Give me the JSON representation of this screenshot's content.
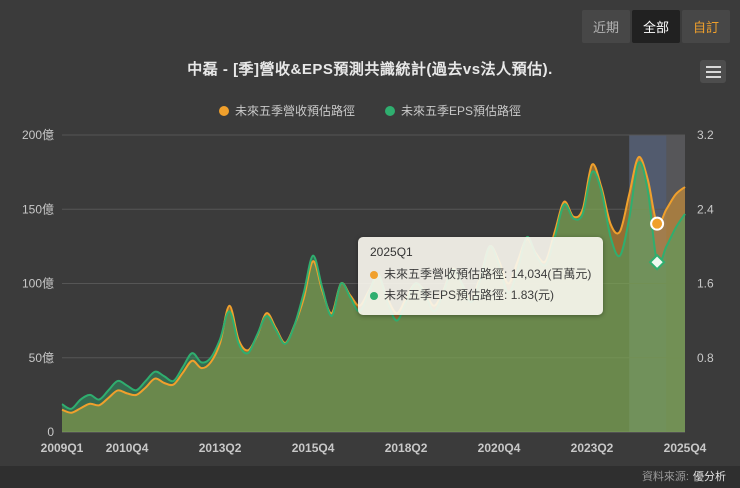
{
  "colors": {
    "background": "#3b3b3b",
    "revenue": "#f0a02c",
    "eps": "#2fae6f",
    "revenue_fill": "rgba(240,160,44,0.50)",
    "eps_fill": "rgba(47,174,111,0.42)",
    "grid": "#565656",
    "axis_line": "#6a6a6a",
    "tick_text": "#c8c8c8",
    "band": "rgba(108,128,168,0.48)",
    "future_band": "rgba(125,125,132,0.42)"
  },
  "toolbar": {
    "buttons": [
      {
        "label": "近期"
      },
      {
        "label": "全部"
      },
      {
        "label": "自訂"
      }
    ]
  },
  "header": {
    "title": "中磊 - [季]營收&EPS預測共識統計(過去vs法人預估)."
  },
  "legend": [
    {
      "label": "未來五季營收預估路徑",
      "color": "#f0a02c"
    },
    {
      "label": "未來五季EPS預估路徑",
      "color": "#2fae6f"
    }
  ],
  "tooltip": {
    "title": "2025Q1",
    "separator": ": ",
    "rows": [
      {
        "label": "未來五季營收預估路徑",
        "value": "14,034(百萬元)",
        "color": "#f0a02c"
      },
      {
        "label": "未來五季EPS預估路徑",
        "value": "1.83(元)",
        "color": "#2fae6f"
      }
    ]
  },
  "footer": {
    "source_label": "資料來源:",
    "source_name": "優分析"
  },
  "chart_data": {
    "type": "area",
    "title": "中磊 - [季]營收&EPS預測共識統計(過去vs法人預估).",
    "grid": true,
    "legend_position": "top",
    "x": [
      "2009Q1",
      "2009Q2",
      "2009Q3",
      "2009Q4",
      "2010Q1",
      "2010Q2",
      "2010Q3",
      "2010Q4",
      "2011Q1",
      "2011Q2",
      "2011Q3",
      "2011Q4",
      "2012Q1",
      "2012Q2",
      "2012Q3",
      "2012Q4",
      "2013Q1",
      "2013Q2",
      "2013Q3",
      "2013Q4",
      "2014Q1",
      "2014Q2",
      "2014Q3",
      "2014Q4",
      "2015Q1",
      "2015Q2",
      "2015Q3",
      "2015Q4",
      "2016Q1",
      "2016Q2",
      "2016Q3",
      "2016Q4",
      "2017Q1",
      "2017Q2",
      "2017Q3",
      "2017Q4",
      "2018Q1",
      "2018Q2",
      "2018Q3",
      "2018Q4",
      "2019Q1",
      "2019Q2",
      "2019Q3",
      "2019Q4",
      "2020Q1",
      "2020Q2",
      "2020Q3",
      "2020Q4",
      "2021Q1",
      "2021Q2",
      "2021Q3",
      "2021Q4",
      "2022Q1",
      "2022Q2",
      "2022Q3",
      "2022Q4",
      "2023Q1",
      "2023Q2",
      "2023Q3",
      "2023Q4",
      "2024Q1",
      "2024Q2",
      "2024Q3",
      "2024Q4",
      "2025Q1",
      "2025Q2",
      "2025Q3",
      "2025Q4"
    ],
    "series": [
      {
        "name": "未來五季營收預估路徑",
        "axis": "left",
        "unit": "億",
        "values": [
          15,
          13,
          16,
          19,
          18,
          23,
          28,
          26,
          25,
          30,
          36,
          33,
          32,
          40,
          48,
          43,
          47,
          60,
          85,
          62,
          55,
          65,
          80,
          70,
          60,
          72,
          90,
          115,
          95,
          80,
          100,
          92,
          85,
          95,
          105,
          90,
          80,
          90,
          100,
          95,
          85,
          95,
          110,
          100,
          90,
          105,
          125,
          115,
          100,
          115,
          130,
          120,
          115,
          135,
          155,
          145,
          150,
          180,
          165,
          140,
          135,
          160,
          185,
          170,
          140.3,
          150,
          160,
          165
        ]
      },
      {
        "name": "未來五季EPS預估路徑",
        "axis": "right",
        "unit": "元",
        "values": [
          0.3,
          0.25,
          0.35,
          0.4,
          0.35,
          0.45,
          0.55,
          0.5,
          0.45,
          0.55,
          0.65,
          0.6,
          0.55,
          0.7,
          0.85,
          0.75,
          0.8,
          1.0,
          1.3,
          0.95,
          0.85,
          1.05,
          1.25,
          1.1,
          0.95,
          1.15,
          1.5,
          1.9,
          1.55,
          1.25,
          1.6,
          1.45,
          1.3,
          1.5,
          1.7,
          1.4,
          1.2,
          1.4,
          1.6,
          1.5,
          1.3,
          1.5,
          1.75,
          1.6,
          1.4,
          1.65,
          2.0,
          1.8,
          1.5,
          1.75,
          2.1,
          1.9,
          1.8,
          2.1,
          2.45,
          2.3,
          2.35,
          2.8,
          2.6,
          2.1,
          1.9,
          2.3,
          2.9,
          2.6,
          1.83,
          2.0,
          2.2,
          2.35
        ]
      }
    ],
    "left_axis": {
      "range": [
        0,
        200
      ],
      "ticks": [
        0,
        50,
        100,
        150,
        200
      ],
      "tick_labels": [
        "0",
        "50億",
        "100億",
        "150億",
        "200億"
      ]
    },
    "right_axis": {
      "range": [
        0,
        3.2
      ],
      "ticks": [
        0,
        0.8,
        1.6,
        2.4,
        3.2
      ],
      "tick_labels": [
        "0",
        "0.8",
        "1.6",
        "2.4",
        "3.2"
      ]
    },
    "x_tick_labels": [
      "2009Q1",
      "2010Q4",
      "2013Q2",
      "2015Q4",
      "2018Q2",
      "2020Q4",
      "2023Q2",
      "2025Q4"
    ],
    "x_tick_indices": [
      0,
      7,
      17,
      27,
      37,
      47,
      57,
      67
    ],
    "highlight_band": {
      "from": "2024Q2",
      "to": "2025Q2"
    },
    "marker_quarter": "2025Q1"
  }
}
